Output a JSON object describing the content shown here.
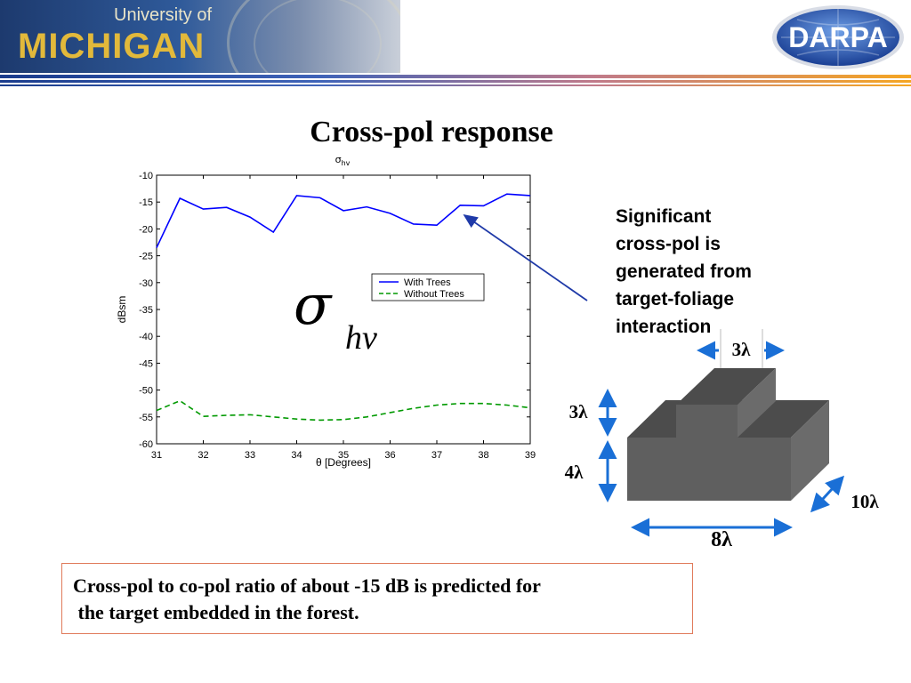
{
  "header": {
    "university_line1": "University of",
    "university_line2": "MICHIGAN",
    "agency": "DARPA",
    "rule_colors": [
      "#1a3c8c",
      "#3f63b8",
      "#c07a8a",
      "#f5a623"
    ]
  },
  "slide": {
    "title": "Cross-pol response"
  },
  "chart_data": {
    "type": "line",
    "title": "σhv",
    "xlabel": "θ [Degrees]",
    "ylabel": "dBsm",
    "xlim": [
      31,
      39
    ],
    "ylim": [
      -60,
      -10
    ],
    "xticks": [
      31,
      32,
      33,
      34,
      35,
      36,
      37,
      38,
      39
    ],
    "yticks": [
      -10,
      -15,
      -20,
      -25,
      -30,
      -35,
      -40,
      -45,
      -50,
      -55,
      -60
    ],
    "grid": false,
    "legend_position": "upper-right",
    "series": [
      {
        "name": "With Trees",
        "color": "#0000ff",
        "style": "solid",
        "x": [
          31,
          31.5,
          32,
          32.5,
          33,
          33.5,
          34,
          34.5,
          35,
          35.5,
          36,
          36.5,
          37,
          37.5,
          38,
          38.5,
          39
        ],
        "y": [
          -23.5,
          -14.3,
          -16.3,
          -16.0,
          -17.8,
          -20.6,
          -13.8,
          -14.2,
          -16.6,
          -15.9,
          -17.1,
          -19.1,
          -19.3,
          -15.6,
          -15.7,
          -13.5,
          -13.8
        ]
      },
      {
        "name": "Without Trees",
        "color": "#009900",
        "style": "dashed",
        "x": [
          31,
          31.5,
          32,
          32.5,
          33,
          33.5,
          34,
          34.5,
          35,
          35.5,
          36,
          36.5,
          37,
          37.5,
          38,
          38.5,
          39
        ],
        "y": [
          -53.8,
          -52.0,
          -54.9,
          -54.7,
          -54.6,
          -55.0,
          -55.4,
          -55.6,
          -55.5,
          -55.0,
          -54.2,
          -53.4,
          -52.8,
          -52.5,
          -52.5,
          -52.8,
          -53.3
        ]
      }
    ],
    "overlay_symbol": "σ",
    "overlay_subscript": "hv"
  },
  "callout": {
    "lines": [
      "Significant",
      "cross-pol is",
      "generated from",
      "target-foliage",
      "interaction"
    ]
  },
  "target": {
    "top_width": "3λ",
    "top_height": "3λ",
    "base_height": "4λ",
    "base_width": "8λ",
    "depth": "10λ",
    "arrow_color": "#1a6fd6"
  },
  "conclusion": {
    "line1": "Cross-pol to co-pol ratio of about -15 dB is predicted for",
    "line2": " the target embedded in the forest."
  }
}
